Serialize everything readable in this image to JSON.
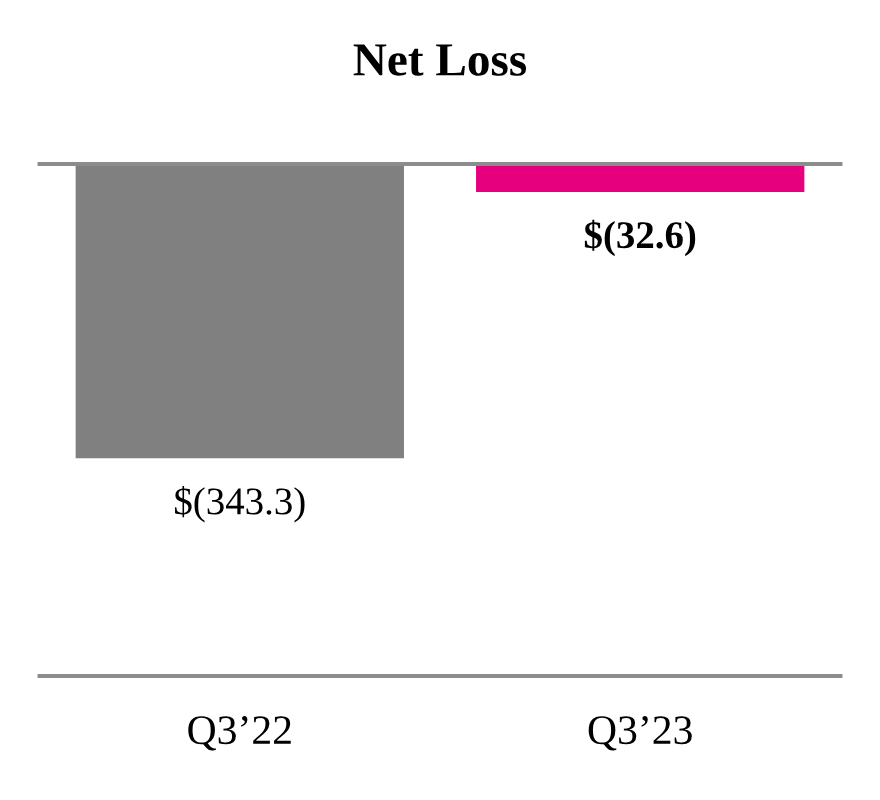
{
  "chart_data": {
    "type": "bar",
    "title": "Net Loss",
    "categories": [
      "Q3’22",
      "Q3’23"
    ],
    "values": [
      -343.3,
      -32.6
    ],
    "colors": [
      "#808080",
      "#e6007e"
    ],
    "value_labels": [
      "$(343.3)",
      "$(32.6)"
    ]
  }
}
